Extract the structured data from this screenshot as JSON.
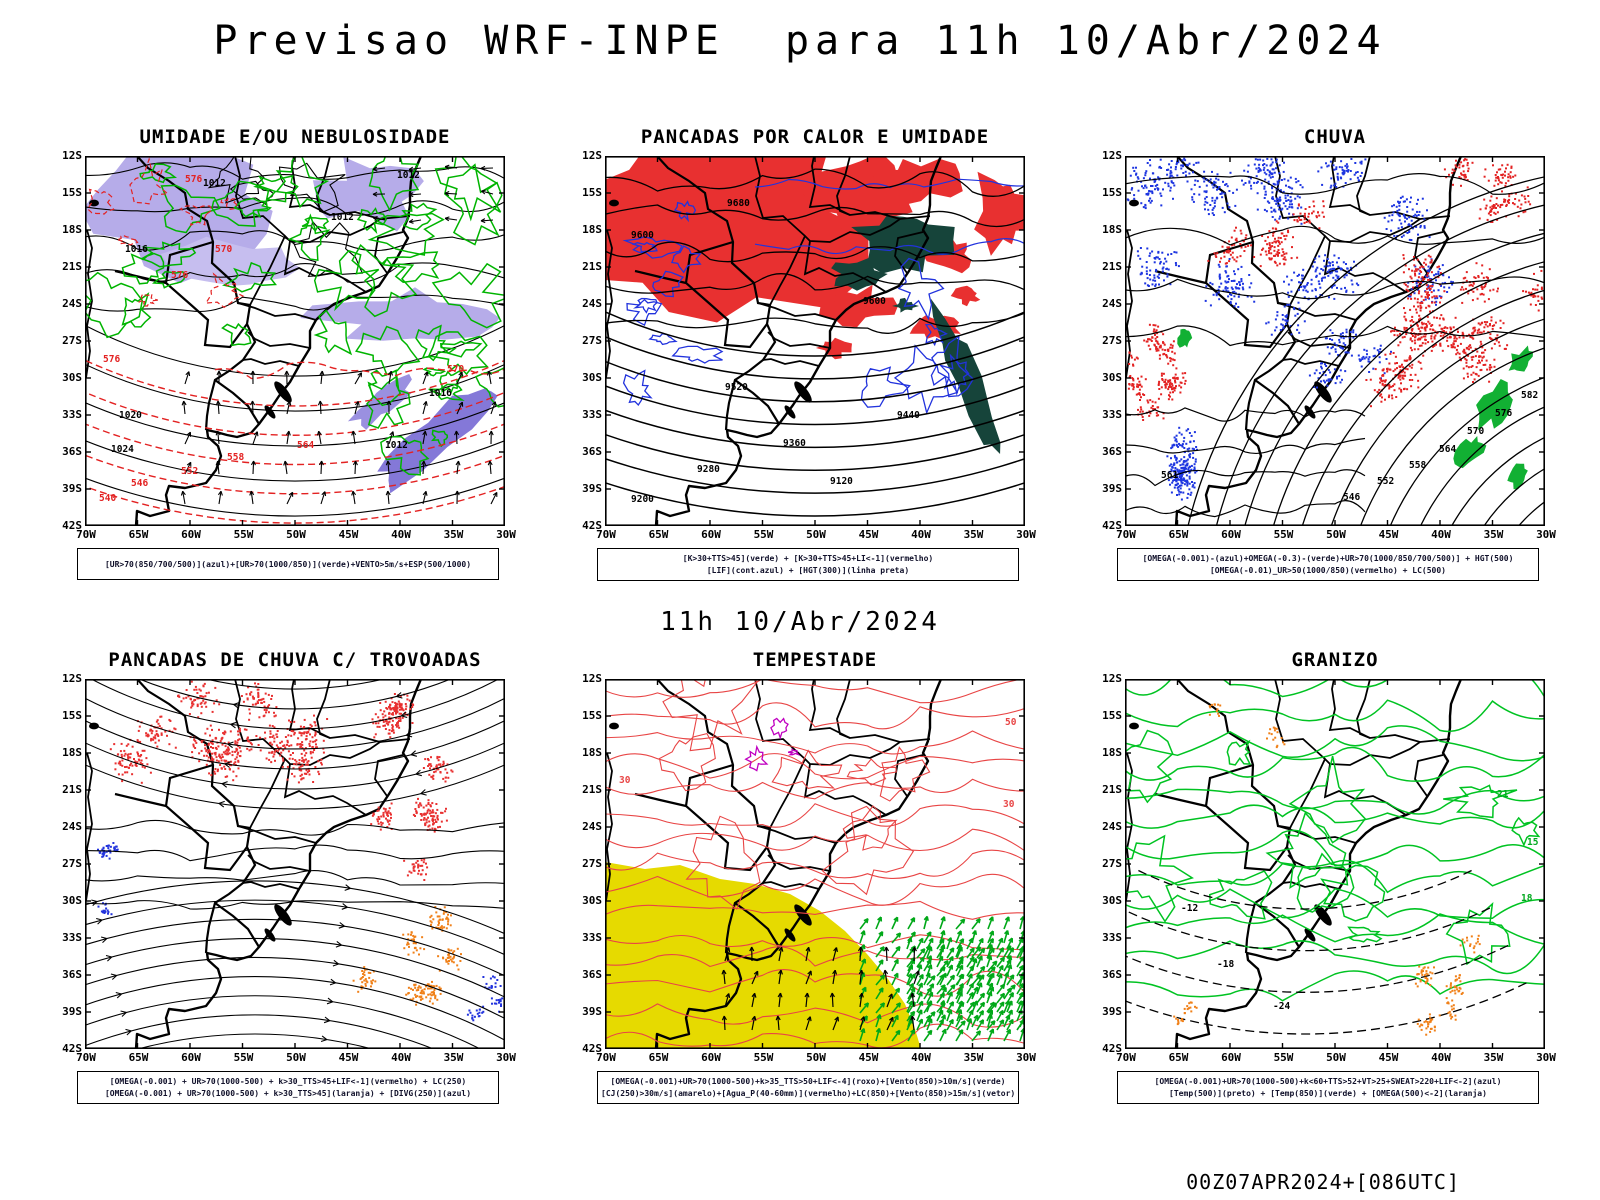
{
  "page": {
    "title": "Previsao WRF-INPE  para 11h 10/Abr/2024",
    "mid_label": "11h 10/Abr/2024",
    "footer": "00Z07APR2024+[086UTC]"
  },
  "axes": {
    "lat": [
      "12S",
      "15S",
      "18S",
      "21S",
      "24S",
      "27S",
      "30S",
      "33S",
      "36S",
      "39S",
      "42S"
    ],
    "lon": [
      "70W",
      "65W",
      "60W",
      "55W",
      "50W",
      "45W",
      "40W",
      "35W",
      "30W"
    ]
  },
  "palette": {
    "verde": "#00b400",
    "vermelho": "#e32222",
    "azul": "#2233dd",
    "laranja": "#f08018",
    "amarelo": "#e6da00",
    "roxo": "#c000c0",
    "lavanda": "#b6ace9",
    "verde_escuro": "#16443a",
    "preto": "#000000"
  },
  "panels": [
    {
      "id": "umidade",
      "title": "UMIDADE E/OU NEBULOSIDADE",
      "legend": [
        "[UR>70(850/700/500)](azul)+[UR>70(1000/850)](verde)+VENTO>5m/s+ESP(500/1000)"
      ],
      "contour_labels": [
        "1012",
        "1016",
        "1020",
        "1024",
        "540",
        "546",
        "552",
        "558",
        "564",
        "570",
        "576"
      ]
    },
    {
      "id": "pancadas-calor",
      "title": "PANCADAS POR CALOR E UMIDADE",
      "legend": [
        "[K>30+TTS>45](verde) + [K>30+TTS>45+LI<-1](vermelho)",
        "[LIF](cont.azul) + [HGT(300)](linha preta)"
      ],
      "contour_labels": [
        "9680",
        "9600",
        "9520",
        "9440",
        "9360",
        "9280",
        "9200",
        "9120"
      ]
    },
    {
      "id": "chuva",
      "title": "CHUVA",
      "legend": [
        "[OMEGA(-0.001)-(azul)+OMEGA(-0.3)-(verde)+UR>70(1000/850/700/500)] + HGT(500)",
        "[OMEGA(-0.01)_UR>50(1000/850)(vermelho) + LC(500)"
      ],
      "contour_labels": [
        "546",
        "552",
        "558",
        "564",
        "570",
        "576",
        "582",
        "561"
      ]
    },
    {
      "id": "trovoadas",
      "title": "PANCADAS DE CHUVA C/ TROVOADAS",
      "legend": [
        "[OMEGA(-0.001) + UR>70(1000-500) + k>30_TTS>45+LIF<-1](vermelho) + LC(250)",
        "[OMEGA(-0.001) + UR>70(1000-500) + k>30_TTS>45](laranja) + [DIVG(250)](azul)"
      ],
      "contour_labels": []
    },
    {
      "id": "tempestade",
      "title": "TEMPESTADE",
      "legend": [
        "[OMEGA(-0.001)+UR>70(1000-500)+k>35_TTS>50+LIF<-4](roxo)+[Vento(850)>10m/s](verde)",
        "[CJ(250)>30m/s](amarelo)+[Agua_P(40-60mm)](vermelho)+LC(850)+[Vento(850)>15m/s](vetor)"
      ],
      "contour_labels": [
        "50",
        "30",
        "30"
      ]
    },
    {
      "id": "granizo",
      "title": "GRANIZO",
      "legend": [
        "[OMEGA(-0.001)+UR>70(1000-500)+k<60+TTS>52+VT>25+SWEAT>220+LIF<-2](azul)",
        "[Temp(500)](preto) + [Temp(850)](verde) + [OMEGA(500)<-2](laranja)"
      ],
      "contour_labels": [
        "-12",
        "-18",
        "-24",
        "15",
        "18",
        "21"
      ]
    }
  ]
}
